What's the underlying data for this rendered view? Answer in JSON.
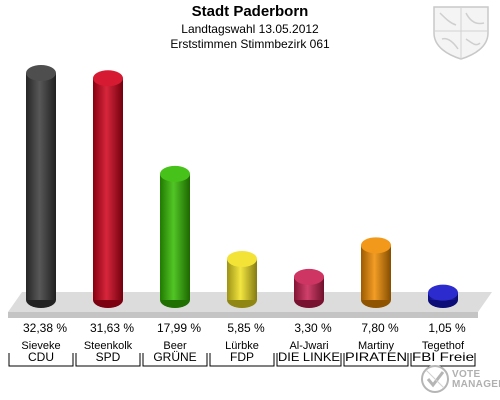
{
  "header": {
    "title": "Stadt Paderborn",
    "subtitle": "Landtagswahl 13.05.2012",
    "subtitle2": "Erststimmen Stimmbezirk 061"
  },
  "logo": {
    "line1": "VOTE",
    "line2": "MANAGER"
  },
  "chart_data": {
    "type": "bar",
    "title": "Stadt Paderborn",
    "categories": [
      "Sieveke",
      "Steenkolk",
      "Beer",
      "Lürbke",
      "Al-Jwari",
      "Martiny",
      "Tegethof"
    ],
    "parties": [
      "CDU",
      "SPD",
      "GRÜNE",
      "FDP",
      "DIE LINKE",
      "PIRATEN",
      "FBI Freie"
    ],
    "values": [
      32.38,
      31.63,
      17.99,
      5.85,
      3.3,
      7.8,
      1.05
    ],
    "value_labels": [
      "32,38 %",
      "31,63 %",
      "17,99 %",
      "5,85 %",
      "3,30 %",
      "7,80 %",
      "1,05 %"
    ],
    "colors": [
      "#3a3a3a",
      "#d0001a",
      "#33bb00",
      "#f0e020",
      "#c81e50",
      "#f08c00",
      "#1414c8"
    ],
    "ylim": [
      0,
      32.38
    ],
    "grid": false
  }
}
